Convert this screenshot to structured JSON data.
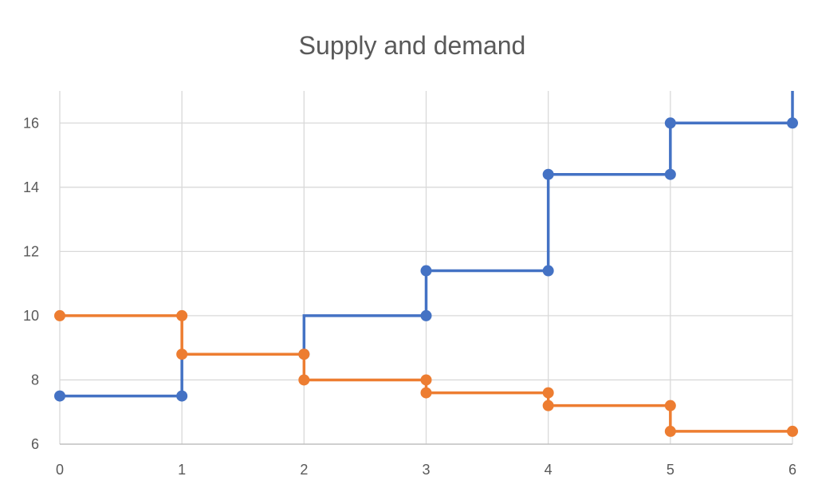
{
  "chart_data": {
    "type": "line",
    "title": "Supply and demand",
    "xlabel": "",
    "ylabel": "",
    "xlim": [
      0,
      6
    ],
    "ylim": [
      6,
      17
    ],
    "x_ticks": [
      0,
      1,
      2,
      3,
      4,
      5,
      6
    ],
    "y_ticks": [
      6,
      8,
      10,
      12,
      14,
      16
    ],
    "grid": true,
    "legend": "none",
    "series": [
      {
        "color": "#4472c4",
        "points": [
          [
            0,
            7.5
          ],
          [
            1,
            7.5
          ],
          [
            1,
            8.8
          ],
          [
            2,
            8.8
          ],
          [
            2,
            10
          ],
          [
            3,
            10
          ],
          [
            3,
            11.4
          ],
          [
            4,
            11.4
          ],
          [
            4,
            14.4
          ],
          [
            5,
            14.4
          ],
          [
            5,
            16
          ],
          [
            6,
            16
          ],
          [
            6,
            17
          ]
        ],
        "markers_on_points": [
          0,
          1,
          3,
          5,
          6,
          7,
          8,
          9,
          10,
          11
        ]
      },
      {
        "color": "#ed7d31",
        "points": [
          [
            0,
            10
          ],
          [
            1,
            10
          ],
          [
            1,
            8.8
          ],
          [
            2,
            8.8
          ],
          [
            2,
            8
          ],
          [
            3,
            8
          ],
          [
            3,
            7.6
          ],
          [
            4,
            7.6
          ],
          [
            4,
            7.2
          ],
          [
            5,
            7.2
          ],
          [
            5,
            6.4
          ],
          [
            6,
            6.4
          ]
        ],
        "markers_on_points": [
          0,
          1,
          2,
          3,
          4,
          5,
          6,
          7,
          8,
          9,
          10,
          11
        ]
      }
    ]
  }
}
